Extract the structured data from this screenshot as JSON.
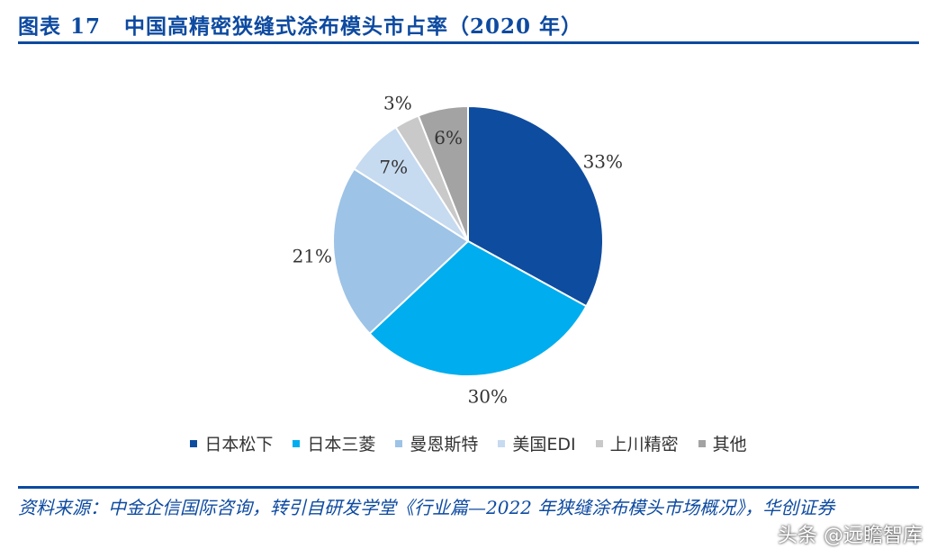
{
  "header": {
    "figure_label": "图表",
    "figure_number": "17",
    "title": "中国高精密狭缝式涂布模头市占率（2020 年）"
  },
  "chart_data": {
    "type": "pie",
    "title": "中国高精密狭缝式涂布模头市占率（2020 年）",
    "start_angle_deg": 0,
    "direction": "clockwise",
    "legend_position": "bottom",
    "slices": [
      {
        "name": "日本松下",
        "value": 33,
        "label": "33%",
        "color": "#0e4c9f"
      },
      {
        "name": "日本三菱",
        "value": 30,
        "label": "30%",
        "color": "#00adee"
      },
      {
        "name": "曼恩斯特",
        "value": 21,
        "label": "21%",
        "color": "#9dc3e6"
      },
      {
        "name": "美国EDI",
        "value": 7,
        "label": "7%",
        "color": "#c6daf0"
      },
      {
        "name": "上川精密",
        "value": 3,
        "label": "3%",
        "color": "#c9c9c9"
      },
      {
        "name": "其他",
        "value": 6,
        "label": "6%",
        "color": "#a3a3a3"
      }
    ]
  },
  "footer": {
    "source": "资料来源：中金企信国际咨询，转引自研发学堂《行业篇—2022 年狭缝涂布模头市场概况》，华创证券"
  },
  "watermark": "头条 @远瞻智库"
}
